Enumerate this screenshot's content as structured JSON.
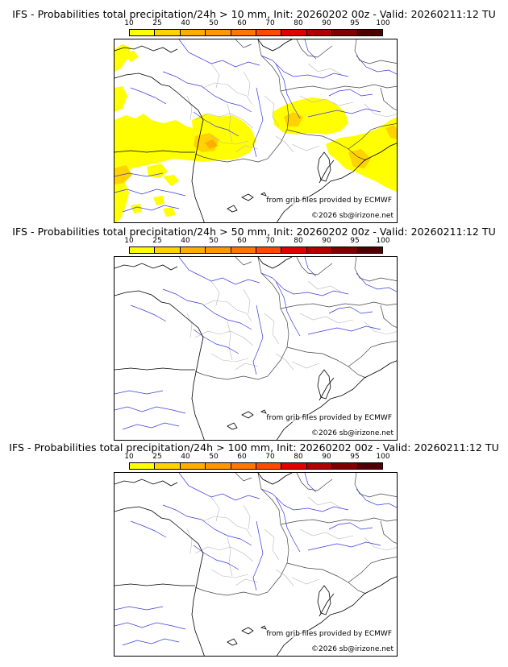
{
  "colorbar": {
    "ticks": [
      "10",
      "25",
      "40",
      "50",
      "60",
      "70",
      "80",
      "90",
      "95",
      "100"
    ],
    "colors": [
      "#ffff00",
      "#ffd200",
      "#ffae00",
      "#ff9800",
      "#ff7700",
      "#ff4a00",
      "#e00000",
      "#b00000",
      "#800000",
      "#500000"
    ]
  },
  "credits": {
    "source": "from grib files provided by ECMWF",
    "copyright": "©2026 sb@irizone.net"
  },
  "panels": [
    {
      "title": "IFS - Probabilities total precipitation/24h > 10 mm, Init: 20260202 00z - Valid: 20260211:12 TU",
      "threshold_mm": 10,
      "has_precip": true
    },
    {
      "title": "IFS - Probabilities total precipitation/24h > 50 mm, Init: 20260202 00z - Valid: 20260211:12 TU",
      "threshold_mm": 50,
      "has_precip": false
    },
    {
      "title": "IFS - Probabilities total precipitation/24h > 100 mm, Init: 20260202 00z - Valid: 20260211:12 TU",
      "threshold_mm": 100,
      "has_precip": false
    }
  ]
}
